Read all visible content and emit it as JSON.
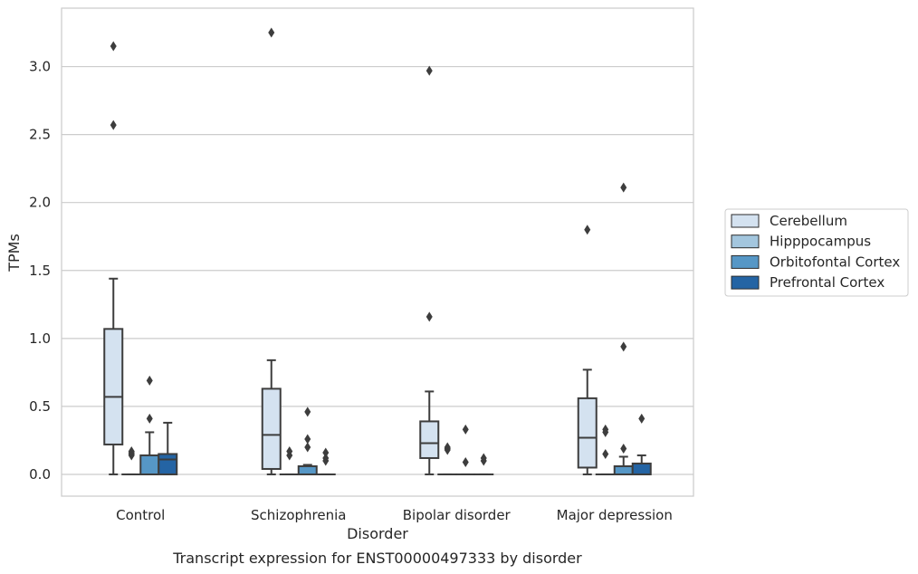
{
  "chart_data": {
    "type": "boxplot",
    "caption": "Transcript expression for ENST00000497333 by disorder",
    "xlabel": "Disorder",
    "ylabel": "TPMs",
    "ylim": [
      -0.16,
      3.43
    ],
    "yticks": [
      "0.0",
      "0.5",
      "1.0",
      "1.5",
      "2.0",
      "2.5",
      "3.0"
    ],
    "ytick_values": [
      0,
      0.5,
      1.0,
      1.5,
      2.0,
      2.5,
      3.0
    ],
    "grid": true,
    "legend_position": "right",
    "categories": [
      "Control",
      "Schizophrenia",
      "Bipolar disorder",
      "Major depression"
    ],
    "series": [
      {
        "name": "Cerebellum",
        "color": "#d4e2f0",
        "boxes": [
          {
            "whislo": 0,
            "q1": 0.22,
            "med": 0.57,
            "q3": 1.07,
            "whishi": 1.44,
            "fliers": [
              2.57,
              3.15
            ]
          },
          {
            "whislo": 0,
            "q1": 0.04,
            "med": 0.29,
            "q3": 0.63,
            "whishi": 0.84,
            "fliers": [
              3.25
            ]
          },
          {
            "whislo": 0,
            "q1": 0.12,
            "med": 0.23,
            "q3": 0.39,
            "whishi": 0.61,
            "fliers": [
              1.16,
              2.97
            ]
          },
          {
            "whislo": 0,
            "q1": 0.05,
            "med": 0.27,
            "q3": 0.56,
            "whishi": 0.77,
            "fliers": [
              1.8
            ]
          }
        ]
      },
      {
        "name": "Hipppocampus",
        "color": "#a3c6de",
        "boxes": [
          {
            "whislo": 0,
            "q1": 0,
            "med": 0,
            "q3": 0,
            "whishi": 0,
            "fliers": [
              0.14,
              0.15,
              0.16,
              0.17
            ]
          },
          {
            "whislo": 0,
            "q1": 0,
            "med": 0,
            "q3": 0,
            "whishi": 0,
            "fliers": [
              0.14,
              0.17
            ]
          },
          {
            "whislo": 0,
            "q1": 0,
            "med": 0,
            "q3": 0,
            "whishi": 0,
            "fliers": [
              0.18,
              0.19,
              0.2
            ]
          },
          {
            "whislo": 0,
            "q1": 0,
            "med": 0,
            "q3": 0,
            "whishi": 0,
            "fliers": [
              0.15,
              0.31,
              0.33
            ]
          }
        ]
      },
      {
        "name": "Orbitofontal Cortex",
        "color": "#5697c6",
        "boxes": [
          {
            "whislo": 0,
            "q1": 0,
            "med": 0,
            "q3": 0.14,
            "whishi": 0.31,
            "fliers": [
              0.41,
              0.69
            ]
          },
          {
            "whislo": 0,
            "q1": 0,
            "med": 0,
            "q3": 0.06,
            "whishi": 0.07,
            "fliers": [
              0.2,
              0.26,
              0.46
            ]
          },
          {
            "whislo": 0,
            "q1": 0,
            "med": 0,
            "q3": 0,
            "whishi": 0,
            "fliers": [
              0.09,
              0.33
            ]
          },
          {
            "whislo": 0,
            "q1": 0,
            "med": 0,
            "q3": 0.06,
            "whishi": 0.13,
            "fliers": [
              0.19,
              0.94,
              2.11
            ]
          }
        ]
      },
      {
        "name": "Prefrontal Cortex",
        "color": "#2464a4",
        "boxes": [
          {
            "whislo": 0,
            "q1": 0,
            "med": 0.11,
            "q3": 0.15,
            "whishi": 0.38,
            "fliers": []
          },
          {
            "whislo": 0,
            "q1": 0,
            "med": 0,
            "q3": 0,
            "whishi": 0,
            "fliers": [
              0.1,
              0.12,
              0.16
            ]
          },
          {
            "whislo": 0,
            "q1": 0,
            "med": 0,
            "q3": 0,
            "whishi": 0,
            "fliers": [
              0.1,
              0.12
            ]
          },
          {
            "whislo": 0,
            "q1": 0,
            "med": 0,
            "q3": 0.08,
            "whishi": 0.14,
            "fliers": [
              0.41
            ]
          }
        ]
      }
    ]
  }
}
